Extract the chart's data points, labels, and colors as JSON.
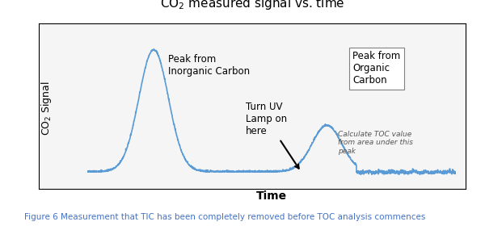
{
  "title": "CO$_2$ measured signal vs. time",
  "xlabel": "Time",
  "ylabel": "CO$_2$ Signal",
  "line_color": "#5b9bd5",
  "background_color": "#ffffff",
  "figure_caption": "Figure 6 Measurement that TIC has been completely removed before TOC analysis commences",
  "caption_color": "#4472c4",
  "annotation_inorganic": "Peak from\nInorganic Carbon",
  "annotation_organic": "Peak from\nOrganic\nCarbon",
  "annotation_uv": "Turn UV\nLamp on\nhere",
  "annotation_toc": "Calculate TOC value\nfrom area under this\npeak"
}
